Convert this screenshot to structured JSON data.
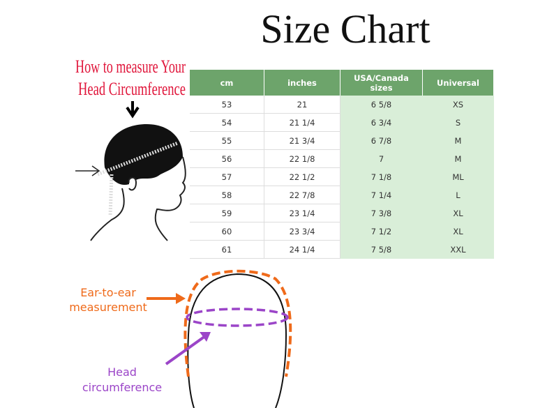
{
  "title": "Size Chart",
  "measure_heading": [
    "How to measure Your",
    "Head Circumference"
  ],
  "table": {
    "header": [
      "cm",
      "inches",
      "USA/Canada sizes",
      "Universal"
    ],
    "rows": [
      [
        "53",
        "21",
        "6 5/8",
        "XS"
      ],
      [
        "54",
        "21 1/4",
        "6 3/4",
        "S"
      ],
      [
        "55",
        "21 3/4",
        "6 7/8",
        "M"
      ],
      [
        "56",
        "22 1/8",
        "7",
        "M"
      ],
      [
        "57",
        "22 1/2",
        "7 1/8",
        "ML"
      ],
      [
        "58",
        "22 7/8",
        "7 1/4",
        "L"
      ],
      [
        "59",
        "23 1/4",
        "7 3/8",
        "XL"
      ],
      [
        "60",
        "23 3/4",
        "7 1/2",
        "XL"
      ],
      [
        "61",
        "24 1/4",
        "7 5/8",
        "XXL"
      ]
    ]
  },
  "ear_to_ear_label": [
    "Ear-to-ear",
    "measurement"
  ],
  "head_circumference_label": [
    "Head",
    "circumference"
  ]
}
